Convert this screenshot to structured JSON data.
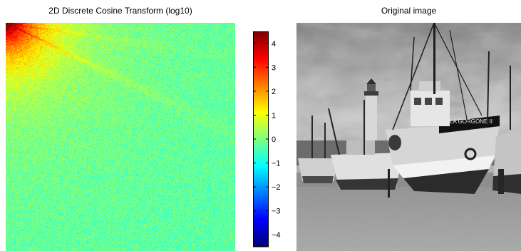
{
  "figure": {
    "left_title": "2D Discrete Cosine Transform (log10)",
    "right_title": "Original image",
    "boat_lettering": "LA GORGONE II"
  },
  "chart_data": [
    {
      "type": "heatmap",
      "title": "2D Discrete Cosine Transform (log10)",
      "xlabel": "",
      "ylabel": "",
      "colormap": "jet",
      "color_scale": "log10",
      "clim": [
        -4.5,
        4.5
      ],
      "colorbar": {
        "placement": "right",
        "ticks": [
          4,
          3,
          2,
          1,
          0,
          -1,
          -2,
          -3,
          -4
        ],
        "tick_labels": [
          "4",
          "3",
          "2",
          "1",
          "0",
          "−1",
          "−2",
          "−3",
          "−4"
        ]
      },
      "description_values": {
        "top_left_dc_log10": 4.3,
        "high_frequency_floor_log10": -0.4,
        "mid_field_log10": 0.4,
        "radial_ridge_log10": 2.0
      }
    },
    {
      "type": "table",
      "title": "Original image",
      "content": "grayscale photograph of fishing boats on a beach at low tide with a lighthouse"
    }
  ]
}
